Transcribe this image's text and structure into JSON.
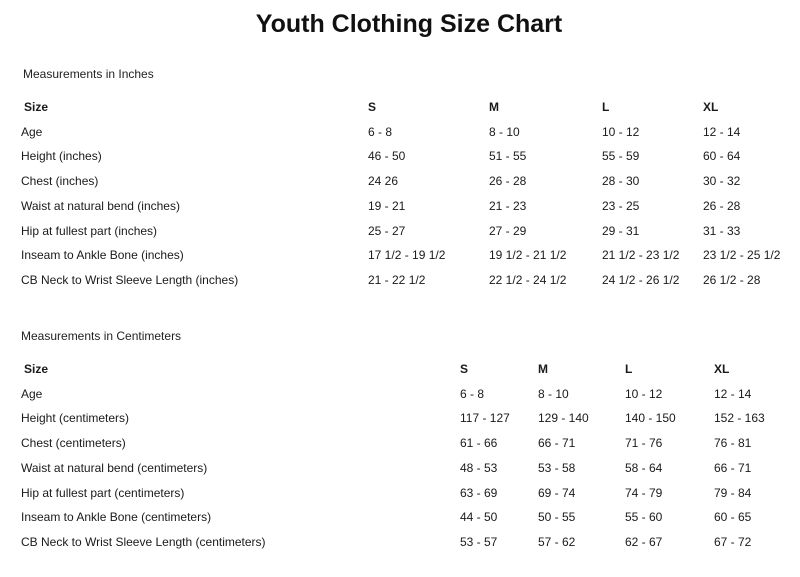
{
  "title": "Youth Clothing Size Chart",
  "tables": [
    {
      "caption": "Measurements in Inches",
      "columns": [
        "Size",
        "S",
        "M",
        "L",
        "XL"
      ],
      "rows": [
        [
          "Age",
          "6 - 8",
          "8 - 10",
          "10 - 12",
          "12 - 14"
        ],
        [
          "Height (inches)",
          "46 - 50",
          "51 - 55",
          "55 - 59",
          "60 - 64"
        ],
        [
          "Chest (inches)",
          "24 26",
          "26 - 28",
          "28 - 30",
          "30 - 32"
        ],
        [
          "Waist at natural bend (inches)",
          "19 - 21",
          "21 - 23",
          "23 - 25",
          "26 - 28"
        ],
        [
          "Hip at fullest part (inches)",
          "25 - 27",
          "27 - 29",
          "29 - 31",
          "31 - 33"
        ],
        [
          "Inseam to Ankle Bone (inches)",
          "17 1/2 - 19 1/2",
          "19 1/2 - 21 1/2",
          "21 1/2 - 23 1/2",
          "23 1/2 - 25 1/2"
        ],
        [
          "CB Neck to Wrist Sleeve Length (inches)",
          "21 - 22 1/2",
          "22 1/2 - 24 1/2",
          "24 1/2 - 26 1/2",
          "26 1/2 - 28"
        ]
      ]
    },
    {
      "caption": "Measurements in Centimeters",
      "columns": [
        "Size",
        "S",
        "M",
        "L",
        "XL"
      ],
      "rows": [
        [
          "Age",
          "6 - 8",
          "8 - 10",
          "10 - 12",
          "12 - 14"
        ],
        [
          "Height (centimeters)",
          "117 - 127",
          "129 - 140",
          "140 - 150",
          "152 - 163"
        ],
        [
          "Chest (centimeters)",
          "61 - 66",
          "66 - 71",
          "71 - 76",
          "76 - 81"
        ],
        [
          "Waist at natural bend (centimeters)",
          "48 - 53",
          "53 - 58",
          "58 - 64",
          "66 - 71"
        ],
        [
          "Hip at fullest part (centimeters)",
          "63 - 69",
          "69 - 74",
          "74 - 79",
          "79 - 84"
        ],
        [
          "Inseam to Ankle Bone (centimeters)",
          "44 - 50",
          "50 - 55",
          "55 - 60",
          "60 - 65"
        ],
        [
          "CB Neck to Wrist Sleeve Length (centimeters)",
          "53 - 57",
          "57 - 62",
          "62 - 67",
          "67 - 72"
        ]
      ]
    }
  ]
}
